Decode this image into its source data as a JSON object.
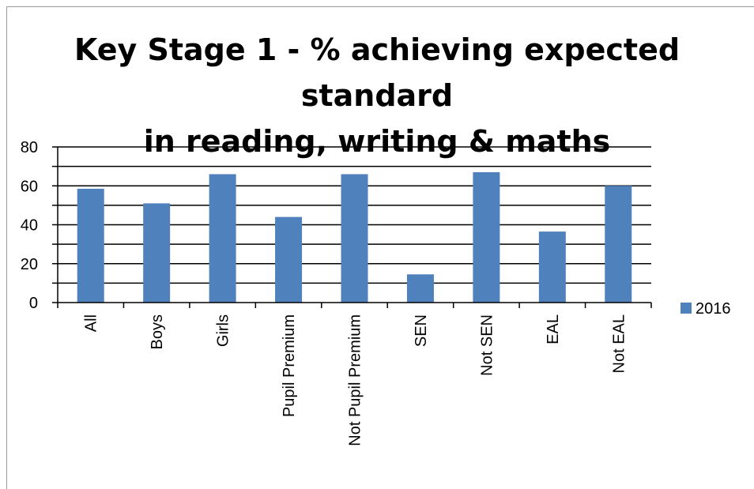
{
  "chart_data": {
    "type": "bar",
    "title_lines": [
      "Key Stage 1 - % achieving expected standard",
      "in reading, writing & maths"
    ],
    "categories": [
      "All",
      "Boys",
      "Girls",
      "Pupil Premium",
      "Not Pupil Premium",
      "SEN",
      "Not SEN",
      "EAL",
      "Not EAL"
    ],
    "series": [
      {
        "name": "2016",
        "values": [
          58.5,
          51,
          66,
          44,
          66,
          14.5,
          67,
          36.5,
          60
        ],
        "color": "#4f81bd"
      }
    ],
    "ylim": [
      0,
      80
    ],
    "yticks": [
      "0",
      "20",
      "40",
      "60",
      "80"
    ],
    "grid": true,
    "legend_position": "right"
  }
}
